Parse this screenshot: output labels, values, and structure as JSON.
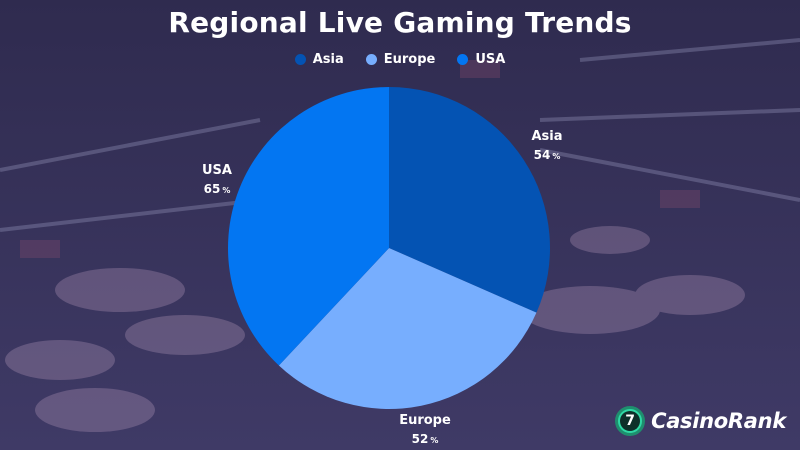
{
  "colors": {
    "background": "#3b3560",
    "Asia": "#0453b3",
    "Europe": "#77aefe",
    "USA": "#0376f2"
  },
  "logo": {
    "badge_text": "7",
    "text": "CasinoRank",
    "icon": "casinorank-logo-icon"
  },
  "chart_data": {
    "type": "pie",
    "title": "Regional Live Gaming Trends",
    "legend_position": "top-center",
    "slices": [
      {
        "label": "Asia",
        "value": 54,
        "display": "54",
        "unit": "%",
        "color": "#0453b3"
      },
      {
        "label": "Europe",
        "value": 52,
        "display": "52",
        "unit": "%",
        "color": "#77aefe"
      },
      {
        "label": "USA",
        "value": 65,
        "display": "65",
        "unit": "%",
        "color": "#0376f2"
      }
    ]
  }
}
